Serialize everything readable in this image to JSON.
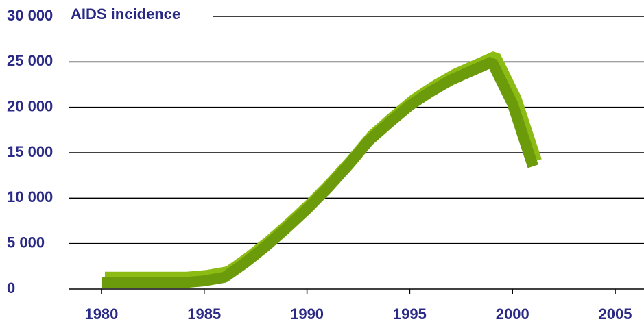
{
  "chart_data": {
    "type": "line",
    "title": "AIDS incidence",
    "x": [
      1980,
      1981,
      1982,
      1983,
      1984,
      1985,
      1986,
      1987,
      1988,
      1989,
      1990,
      1991,
      1992,
      1993,
      1994,
      1995,
      1996,
      1997,
      1998,
      1999,
      2000,
      2001
    ],
    "series": [
      {
        "name": "AIDS incidence",
        "color": "#6b9a0a",
        "top_color": "#8cbc14",
        "values": [
          700,
          700,
          700,
          700,
          700,
          900,
          1300,
          2900,
          4700,
          6700,
          8800,
          11100,
          13600,
          16300,
          18300,
          20200,
          21700,
          23000,
          24000,
          25000,
          20400,
          13500
        ]
      }
    ],
    "xlim": [
      1978.4,
      2006.4
    ],
    "xticks": [
      1980,
      1985,
      1990,
      1995,
      2000,
      2005
    ],
    "ylim": [
      0,
      30000
    ],
    "yticks": [
      {
        "value": 0,
        "label": "0"
      },
      {
        "value": 5000,
        "label": "5 000"
      },
      {
        "value": 10000,
        "label": "10 000"
      },
      {
        "value": 15000,
        "label": "15 000"
      },
      {
        "value": 20000,
        "label": "20 000"
      },
      {
        "value": 25000,
        "label": "25 000"
      },
      {
        "value": 30000,
        "label": "30 000"
      }
    ],
    "grid": true
  }
}
